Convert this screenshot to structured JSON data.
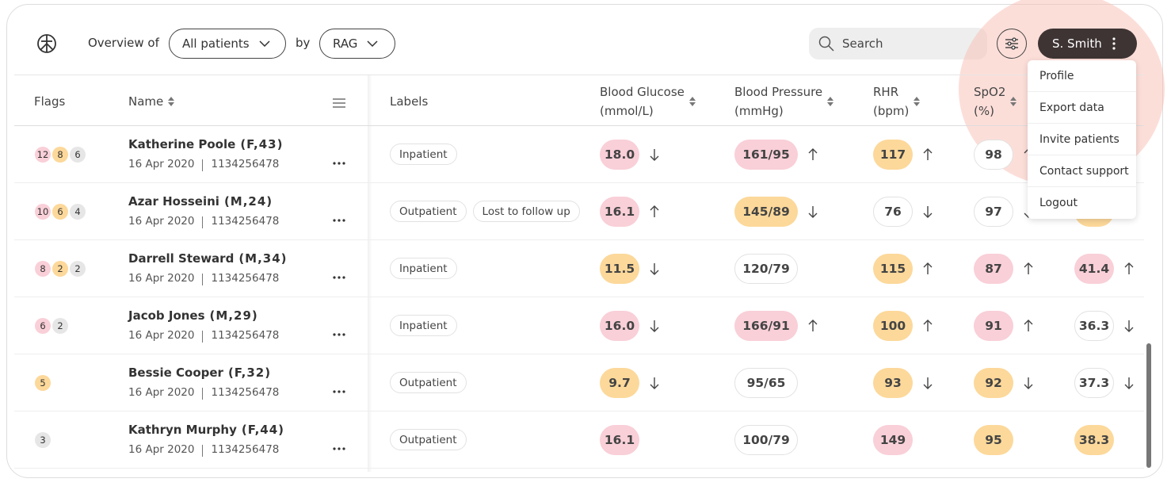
{
  "header": {
    "overview_label": "Overview of",
    "filter": "All patients",
    "by_label": "by",
    "group": "RAG",
    "search": "Search",
    "user": "S. Smith"
  },
  "menu": [
    "Profile",
    "Export data",
    "Invite patients",
    "Contact support",
    "Logout"
  ],
  "columns": {
    "flags": "Flags",
    "name": "Name",
    "labels": "Labels",
    "glucose": [
      "Blood Glucose",
      "(mmol/L)"
    ],
    "pressure": [
      "Blood Pressure",
      "(mmHg)"
    ],
    "rhr": [
      "RHR",
      "(bpm)"
    ],
    "spo2": [
      "SpO2",
      "(%)"
    ]
  },
  "rows": [
    {
      "flags": [
        {
          "count": "12",
          "color": "red"
        },
        {
          "count": "8",
          "color": "amber"
        },
        {
          "count": "6",
          "color": "grey"
        }
      ],
      "name": "Katherine Poole",
      "demo": "(F,43)",
      "date": "16 Apr 2020",
      "id": "1134256478",
      "labels": [
        "Inpatient"
      ],
      "vitals": [
        {
          "value": "18.0",
          "status": "red",
          "trend": "down"
        },
        {
          "value": "161/95",
          "status": "red",
          "trend": "up"
        },
        {
          "value": "117",
          "status": "amber",
          "trend": "up"
        },
        {
          "value": "98",
          "status": "neutral",
          "trend": "up"
        }
      ]
    },
    {
      "flags": [
        {
          "count": "10",
          "color": "red"
        },
        {
          "count": "6",
          "color": "amber"
        },
        {
          "count": "4",
          "color": "grey"
        }
      ],
      "name": "Azar Hosseini",
      "demo": "(M,24)",
      "date": "16 Apr 2020",
      "id": "1134256478",
      "labels": [
        "Outpatient",
        "Lost to follow up"
      ],
      "vitals": [
        {
          "value": "16.1",
          "status": "red",
          "trend": "up"
        },
        {
          "value": "145/89",
          "status": "amber",
          "trend": "down"
        },
        {
          "value": "76",
          "status": "neutral",
          "trend": "down"
        },
        {
          "value": "97",
          "status": "neutral",
          "trend": "down"
        },
        {
          "status": "amber"
        }
      ]
    },
    {
      "flags": [
        {
          "count": "8",
          "color": "red"
        },
        {
          "count": "2",
          "color": "amber"
        },
        {
          "count": "2",
          "color": "grey"
        }
      ],
      "name": "Darrell Steward",
      "demo": "(M,34)",
      "date": "16 Apr 2020",
      "id": "1134256478",
      "labels": [
        "Inpatient"
      ],
      "vitals": [
        {
          "value": "11.5",
          "status": "amber",
          "trend": "down"
        },
        {
          "value": "120/79",
          "status": "neutral"
        },
        {
          "value": "115",
          "status": "amber",
          "trend": "up"
        },
        {
          "value": "87",
          "status": "red",
          "trend": "up"
        },
        {
          "value": "41.4",
          "status": "red",
          "trend": "up"
        }
      ]
    },
    {
      "flags": [
        {
          "count": "6",
          "color": "red"
        },
        {
          "count": "2",
          "color": "grey"
        }
      ],
      "name": "Jacob Jones",
      "demo": "(M,29)",
      "date": "16 Apr 2020",
      "id": "1134256478",
      "labels": [
        "Inpatient"
      ],
      "vitals": [
        {
          "value": "16.0",
          "status": "red",
          "trend": "down"
        },
        {
          "value": "166/91",
          "status": "red",
          "trend": "up"
        },
        {
          "value": "100",
          "status": "amber",
          "trend": "up"
        },
        {
          "value": "91",
          "status": "red",
          "trend": "up"
        },
        {
          "value": "36.3",
          "status": "neutral",
          "trend": "down"
        }
      ]
    },
    {
      "flags": [
        {
          "count": "5",
          "color": "amber"
        }
      ],
      "name": "Bessie Cooper",
      "demo": "(F,32)",
      "date": "16 Apr 2020",
      "id": "1134256478",
      "labels": [
        "Outpatient"
      ],
      "vitals": [
        {
          "value": "9.7",
          "status": "amber",
          "trend": "down"
        },
        {
          "value": "95/65",
          "status": "neutral"
        },
        {
          "value": "93",
          "status": "amber",
          "trend": "down"
        },
        {
          "value": "92",
          "status": "amber",
          "trend": "down"
        },
        {
          "value": "37.3",
          "status": "neutral",
          "trend": "down"
        }
      ]
    },
    {
      "flags": [
        {
          "count": "3",
          "color": "grey"
        }
      ],
      "name": "Kathryn Murphy",
      "demo": "(F,44)",
      "date": "16 Apr 2020",
      "id": "1134256478",
      "labels": [
        "Outpatient"
      ],
      "vitals": [
        {
          "value": "16.1",
          "status": "red"
        },
        {
          "value": "100/79",
          "status": "neutral"
        },
        {
          "value": "149",
          "status": "red"
        },
        {
          "value": "95",
          "status": "amber"
        },
        {
          "value": "38.3",
          "status": "amber"
        }
      ]
    }
  ]
}
